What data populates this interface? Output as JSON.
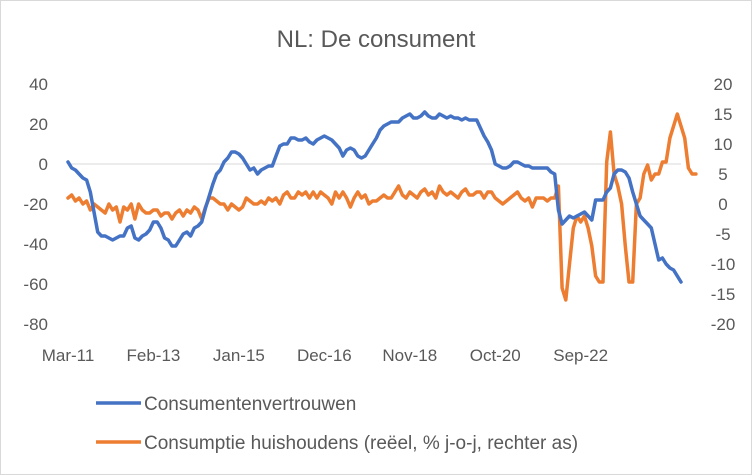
{
  "chart_data": {
    "type": "line",
    "title": "NL: De consument",
    "x_start": "2011-03",
    "x_end": "2022-09",
    "x_tick_labels": [
      "Mar-11",
      "Feb-13",
      "Jan-15",
      "Dec-16",
      "Nov-18",
      "Oct-20",
      "Sep-22"
    ],
    "y_left": {
      "ticks": [
        -80,
        -60,
        -40,
        -20,
        0,
        20,
        40
      ],
      "lim": [
        -80,
        40
      ]
    },
    "y_right": {
      "ticks": [
        -20,
        -15,
        -10,
        -5,
        0,
        5,
        10,
        15,
        20
      ],
      "lim": [
        -20,
        20
      ]
    },
    "series": [
      {
        "name": "Consumentenvertrouwen",
        "axis": "left",
        "color": "#4472C4",
        "values": [
          1,
          -2,
          -3,
          -5,
          -7,
          -8,
          -14,
          -24,
          -34,
          -36,
          -36,
          -37,
          -38,
          -37,
          -36,
          -36,
          -32,
          -31,
          -37,
          -38,
          -36,
          -35,
          -33,
          -29,
          -29,
          -32,
          -37,
          -38,
          -41,
          -41,
          -38,
          -35,
          -34,
          -36,
          -32,
          -31,
          -29,
          -22,
          -16,
          -10,
          -5,
          -3,
          1,
          3,
          6,
          6,
          5,
          3,
          0,
          -3,
          -2,
          -5,
          -3,
          -2,
          -1,
          -1,
          4,
          9,
          10,
          10,
          13,
          13,
          12,
          12,
          13,
          11,
          10,
          12,
          13,
          14,
          13,
          12,
          10,
          8,
          4,
          7,
          8,
          7,
          4,
          3,
          4,
          7,
          10,
          13,
          17,
          19,
          20,
          21,
          21,
          21,
          23,
          24,
          25,
          23,
          23,
          24,
          26,
          24,
          23,
          23,
          25,
          24,
          23,
          24,
          23,
          23,
          22,
          23,
          22,
          22,
          22,
          18,
          14,
          11,
          7,
          0,
          -1,
          -2,
          -2,
          -1,
          1,
          1,
          0,
          -1,
          -1,
          -2,
          -2,
          -2,
          -2,
          -2,
          -4,
          -5,
          -23,
          -30,
          -28,
          -26,
          -27,
          -26,
          -25,
          -24,
          -26,
          -28,
          -18,
          -18,
          -18,
          -14,
          -12,
          -5,
          -3,
          -3,
          -4,
          -7,
          -14,
          -20,
          -26,
          -28,
          -30,
          -32,
          -40,
          -48,
          -47,
          -50,
          -52,
          -53,
          -56,
          -59
        ]
      },
      {
        "name": "Consumptie huishoudens (reëel, % j-o-j, rechter as)",
        "axis": "right",
        "color": "#ED7D31",
        "values": [
          1,
          1.5,
          0.5,
          1,
          0,
          0.5,
          -1,
          0,
          -0.5,
          -1,
          -1.5,
          0,
          -1,
          -0.5,
          -3,
          -0.5,
          -1,
          0,
          -2.5,
          0,
          -1,
          -1.5,
          -1.5,
          -1,
          -1,
          -2,
          -1.5,
          -1.5,
          -2.5,
          -1.5,
          -1,
          -2,
          -1,
          -1.5,
          -0.5,
          -1,
          -2.5,
          -0.5,
          1,
          1,
          0.5,
          0,
          0,
          -1,
          0,
          -0.5,
          -1,
          -0.5,
          1,
          0.5,
          0,
          0,
          0.5,
          0,
          1,
          0.5,
          1,
          0,
          1.5,
          2,
          1,
          1,
          2,
          1.5,
          2,
          1,
          2,
          1,
          2,
          1.5,
          1,
          0,
          2,
          1,
          2,
          1,
          -0.5,
          1,
          2,
          1,
          1.5,
          0,
          0.5,
          0.5,
          1,
          1.5,
          1,
          1,
          2,
          3,
          1.5,
          1,
          2,
          1.5,
          1,
          2,
          2.5,
          1.5,
          2,
          1,
          3,
          2,
          1.5,
          2,
          1.5,
          1,
          2,
          2.5,
          1.5,
          1.5,
          2,
          2,
          1,
          2,
          2,
          1,
          0.5,
          0,
          0.5,
          1,
          1.5,
          2,
          1,
          0.5,
          1,
          -0.5,
          1,
          1,
          1,
          0.5,
          1,
          1,
          3,
          -14,
          -16,
          -10,
          -4,
          -2,
          -3,
          -2,
          -4,
          -7,
          -12,
          -13,
          -13,
          7,
          12,
          5,
          3,
          0,
          -7,
          -13,
          -13,
          0,
          1,
          5,
          6.5,
          4,
          5,
          5,
          7,
          7,
          11,
          13,
          15,
          13,
          11,
          6,
          5,
          5
        ]
      }
    ],
    "legend": [
      "Consumentenvertrouwen",
      "Consumptie huishoudens (reëel, % j-o-j, rechter as)"
    ],
    "legend_placement": "bottom",
    "grid": false
  }
}
